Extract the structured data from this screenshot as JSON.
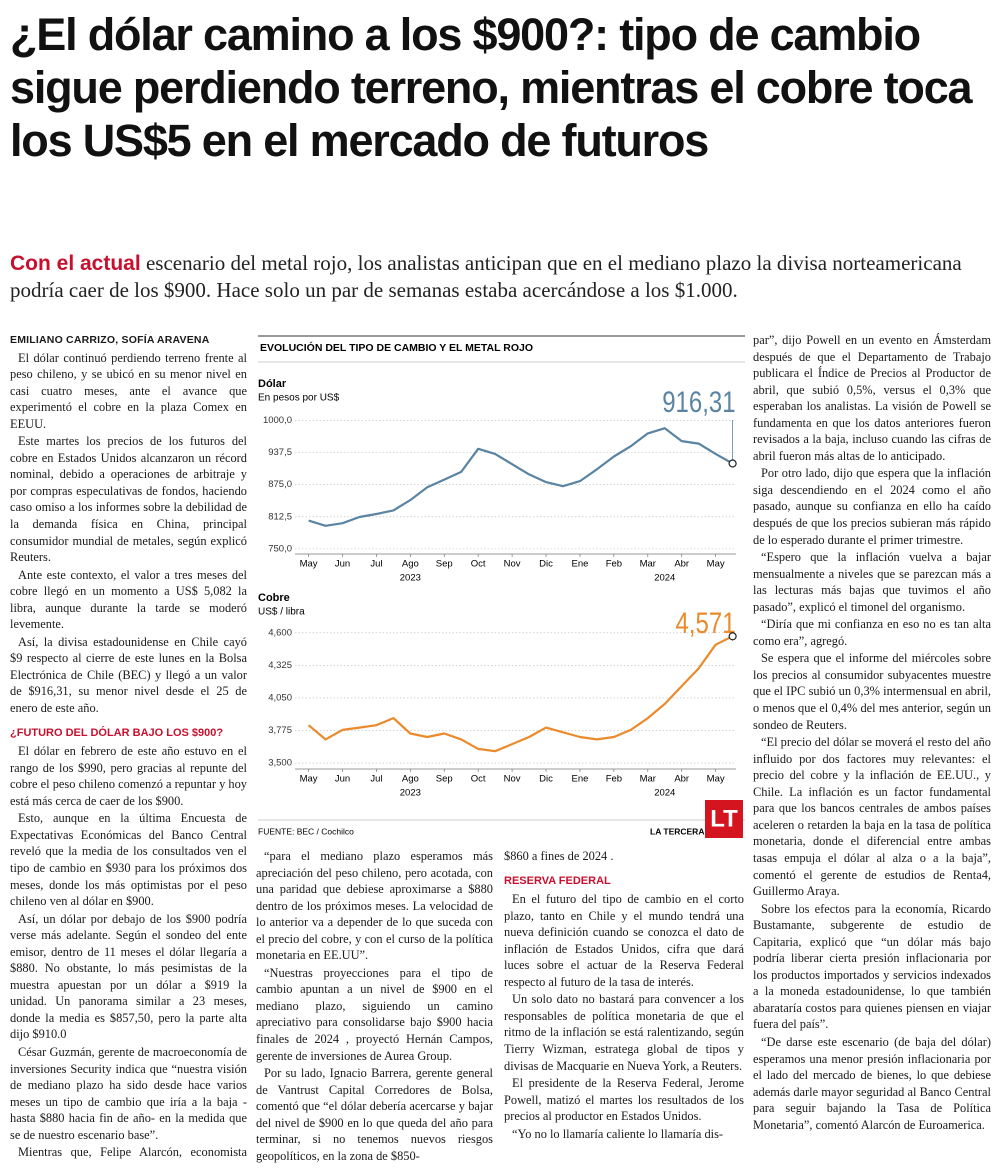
{
  "header": {
    "title": "¿El dólar camino a los $900?: tipo de cambio sigue perdiendo terreno, mientras el cobre toca los US$5 en el mercado de futuros",
    "deck_lead": "Con el actual",
    "deck": "escenario del metal rojo, los analistas anticipan que en el mediano plazo la divisa norteamericana podría caer de los $900. Hace solo un par de semanas estaba acercándose a los $1.000."
  },
  "article": {
    "byline": "EMILIANO CARRIZO, SOFÍA ARAVENA",
    "subheads": [
      "¿FUTURO DEL DÓLAR BAJO LOS $900?",
      "RESERVA FEDERAL"
    ],
    "paragraphs": [
      "El dólar continuó perdiendo terreno frente al peso chileno, y se ubicó en su menor nivel en casi cuatro meses, ante el avance que experimentó el cobre en la plaza Comex en EEUU.",
      "Este martes los precios de los futuros del cobre en Estados Unidos alcanzaron un récord nominal, debido a operaciones de arbitraje y por compras especulativas de fondos, haciendo caso omiso a los informes sobre la debilidad de la demanda física en China, principal consumidor mundial de metales, según explicó Reuters.",
      "Ante este contexto, el valor a tres meses del cobre llegó en un momento a US$ 5,082 la libra, aunque durante la tarde se moderó levemente.",
      "Así, la divisa estadounidense en Chile cayó $9 respecto al cierre de este lunes en la Bolsa Electrónica de Chile (BEC) y llegó a un valor de $916,31, su menor nivel desde el 25 de enero de este año.",
      "El dólar en febrero de este año estuvo en el rango de los $990, pero gracias al repunte del cobre el peso chileno comenzó a repuntar y hoy está más cerca de caer de los $900.",
      "Esto, aunque en la última Encuesta de Expectativas Económicas del Banco Central reveló que la media de los consultados ven el tipo de cambio en $930 para los próximos dos meses, donde los más optimistas por el peso chileno ven al dólar en $900.",
      "Así, un dólar por debajo de los $900 podría verse más adelante. Según el sondeo del ente emisor, dentro de 11 meses el dólar llegaría a $880. No obstante, lo más pesimistas de la muestra apuestan por un dólar a $919 la unidad. Un panorama similar a 23 meses, donde la media es $857,50, pero la parte alta dijo $910.0",
      "César Guzmán, gerente de macroeconomía de inversiones Security indica que “nuestra visión de mediano plazo ha sido desde hace varios meses un tipo de cambio que iría a la baja -hasta $880 hacia fin de año- en la medida que se de nuestro escenario base”.",
      "Mientras que, Felipe Alarcón, economista asesor de Euroamerica, comentó que,",
      "“para el mediano plazo esperamos más apreciación del peso chileno, pero acotada, con una paridad que debiese aproximarse a $880 dentro de los próximos meses. La velocidad de lo anterior va a depender de lo que suceda con el precio del cobre, y con el curso de la política monetaria en EE.UU”.",
      "“Nuestras proyecciones para el tipo de cambio apuntan a un nivel de $900 en el mediano plazo, siguiendo un camino apreciativo para consolidarse bajo $900 hacia finales de 2024 , proyectó Hernán Campos, gerente de inversiones de Aurea Group.",
      "Por su lado, Ignacio Barrera, gerente general de Vantrust Capital Corredores de Bolsa, comentó que “el dólar debería acercarse y bajar del nivel de $900 en lo que queda del año para terminar, si no tenemos nuevos riesgos geopolíticos, en la zona de $850-",
      "$860 a fines de 2024 .",
      "En el futuro del tipo de cambio en el corto plazo, tanto en Chile y el mundo tendrá una nueva definición cuando se conozca el dato de inflación de Estados Unidos, cifra que dará luces sobre el actuar de la Reserva Federal respecto al futuro de la tasa de interés.",
      "Un solo dato no bastará para convencer a los responsables de política monetaria de que el ritmo de la inflación se está ralentizando, según Tierry Wizman, estratega global de tipos y divisas de Macquarie en Nueva York, a Reuters.",
      "El presidente de la Reserva Federal, Jerome Powell, matizó el martes los resultados de los precios al productor en Estados Unidos.",
      "“Yo no lo llamaría caliente lo llamaría dis-",
      "par”, dijo Powell en un evento en Ámsterdam después de que el Departamento de Trabajo publicara el Índice de Precios al Productor de abril, que subió 0,5%, versus el 0,3% que esperaban los analistas. La visión de Powell se fundamenta en que los datos anteriores fueron revisados a la baja, incluso cuando las cifras de abril fueron más altas de lo anticipado.",
      "Por otro lado, dijo que espera que la inflación siga descendiendo en el 2024 como el año pasado, aunque su confianza en ello ha caído después de que los precios subieran más rápido de lo esperado durante el primer trimestre.",
      "“Espero que la inflación vuelva a bajar mensualmente a niveles que se parezcan más a las lecturas más bajas que tuvimos el año pasado”, explicó el timonel del organismo.",
      "“Diría que mi confianza en eso no es tan alta como era”, agregó.",
      "Se espera que el informe del miércoles sobre los precios al consumidor subyacentes muestre que el IPC subió un 0,3% intermensual en abril, o menos que el 0,4% del mes anterior, según un sondeo de Reuters.",
      "“El precio del dólar se moverá el resto del año influido por dos factores muy relevantes: el precio del cobre y la inflación de EE.UU., y Chile. La inflación es un factor fundamental para que los bancos centrales de ambos países aceleren o retarden la baja en la tasa de política monetaria, donde el diferencial entre ambas tasas empuja el dólar al alza o a la baja”, comentó el gerente de estudios de Renta4, Guillermo Araya.",
      "Sobre los efectos para la economía, Ricardo Bustamante, subgerente de estudio de Capitaria, explicó que “un dólar más bajo podría liberar cierta presión inflacionaria por los productos importados y servicios indexados a la moneda estadounidense, lo que también abarataría costos para quienes piensen en viajar fuera del país”.",
      "“De darse este escenario (de baja del dólar) esperamos una menor presión inflacionaria por el lado del mercado de bienes, lo que debiese además darle mayor seguridad al Banco Central para seguir bajando la Tasa de Política Monetaria”, comentó Alarcón de Euroamerica."
    ]
  },
  "figure": {
    "title": "EVOLUCIÓN DEL TIPO DE CAMBIO Y EL METAL ROJO",
    "source": "FUENTE: BEC / Cochilco",
    "brand": "LA TERCERA",
    "logo": "LT"
  },
  "chart_data": [
    {
      "type": "line",
      "title": "Dólar",
      "subtitle": "En pesos por US$",
      "color": "#5a84a2",
      "x": [
        0,
        0.5,
        1,
        1.5,
        2,
        2.5,
        3,
        3.5,
        4,
        4.5,
        5,
        5.5,
        6,
        6.5,
        7,
        7.5,
        8,
        8.5,
        9,
        9.5,
        10,
        10.5,
        11,
        11.5,
        12,
        12.5
      ],
      "values": [
        805,
        795,
        800,
        812,
        818,
        825,
        845,
        870,
        885,
        900,
        945,
        935,
        915,
        895,
        880,
        872,
        882,
        905,
        930,
        950,
        975,
        985,
        960,
        955,
        935,
        916.31
      ],
      "value_labels": [
        null,
        null,
        null,
        null,
        null,
        null,
        null,
        null,
        null,
        null,
        null,
        null,
        null,
        null,
        null,
        null,
        null,
        null,
        null,
        null,
        null,
        null,
        null,
        null,
        null,
        "916,31"
      ],
      "xlim": [
        -0.4,
        12.6
      ],
      "xticks": [
        {
          "value": 0,
          "label": "May"
        },
        {
          "value": 1,
          "label": "Jun"
        },
        {
          "value": 2,
          "label": "Jul"
        },
        {
          "value": 3,
          "label": "Ago"
        },
        {
          "value": 4,
          "label": "Sep"
        },
        {
          "value": 5,
          "label": "Oct"
        },
        {
          "value": 6,
          "label": "Nov"
        },
        {
          "value": 7,
          "label": "Dic"
        },
        {
          "value": 8,
          "label": "Ene"
        },
        {
          "value": 9,
          "label": "Feb"
        },
        {
          "value": 10,
          "label": "Mar"
        },
        {
          "value": 11,
          "label": "Abr"
        },
        {
          "value": 12,
          "label": "May"
        }
      ],
      "year_labels": [
        {
          "value": 3,
          "label": "2023"
        },
        {
          "value": 10.5,
          "label": "2024"
        }
      ],
      "ylim": [
        740,
        1040
      ],
      "yticks": [
        {
          "value": 750,
          "label": "750,0"
        },
        {
          "value": 812.5,
          "label": "812,5"
        },
        {
          "value": 875,
          "label": "875,0"
        },
        {
          "value": 937.5,
          "label": "937,5"
        },
        {
          "value": 1000,
          "label": "1000,0"
        }
      ],
      "grid": true
    },
    {
      "type": "line",
      "title": "Cobre",
      "subtitle": "US$ / libra",
      "color": "#ea8a2b",
      "x": [
        0,
        0.5,
        1,
        1.5,
        2,
        2.5,
        3,
        3.5,
        4,
        4.5,
        5,
        5.5,
        6,
        6.5,
        7,
        7.5,
        8,
        8.5,
        9,
        9.5,
        10,
        10.5,
        11,
        11.5,
        12,
        12.5
      ],
      "values": [
        3.82,
        3.7,
        3.78,
        3.8,
        3.82,
        3.88,
        3.75,
        3.72,
        3.75,
        3.7,
        3.62,
        3.6,
        3.66,
        3.72,
        3.8,
        3.76,
        3.72,
        3.7,
        3.72,
        3.78,
        3.88,
        4.0,
        4.15,
        4.3,
        4.5,
        4.571
      ],
      "value_labels": [
        null,
        null,
        null,
        null,
        null,
        null,
        null,
        null,
        null,
        null,
        null,
        null,
        null,
        null,
        null,
        null,
        null,
        null,
        null,
        null,
        null,
        null,
        null,
        null,
        null,
        "4,571"
      ],
      "xlim": [
        -0.4,
        12.6
      ],
      "xticks": [
        {
          "value": 0,
          "label": "May"
        },
        {
          "value": 1,
          "label": "Jun"
        },
        {
          "value": 2,
          "label": "Jul"
        },
        {
          "value": 3,
          "label": "Ago"
        },
        {
          "value": 4,
          "label": "Sep"
        },
        {
          "value": 5,
          "label": "Oct"
        },
        {
          "value": 6,
          "label": "Nov"
        },
        {
          "value": 7,
          "label": "Dic"
        },
        {
          "value": 8,
          "label": "Ene"
        },
        {
          "value": 9,
          "label": "Feb"
        },
        {
          "value": 10,
          "label": "Mar"
        },
        {
          "value": 11,
          "label": "Abr"
        },
        {
          "value": 12,
          "label": "May"
        }
      ],
      "year_labels": [
        {
          "value": 3,
          "label": "2023"
        },
        {
          "value": 10.5,
          "label": "2024"
        }
      ],
      "ylim": [
        3.45,
        4.7
      ],
      "yticks": [
        {
          "value": 3.5,
          "label": "3,500"
        },
        {
          "value": 3.775,
          "label": "3,775"
        },
        {
          "value": 4.05,
          "label": "4,050"
        },
        {
          "value": 4.325,
          "label": "4,325"
        },
        {
          "value": 4.6,
          "label": "4,600"
        }
      ],
      "grid": true
    }
  ]
}
